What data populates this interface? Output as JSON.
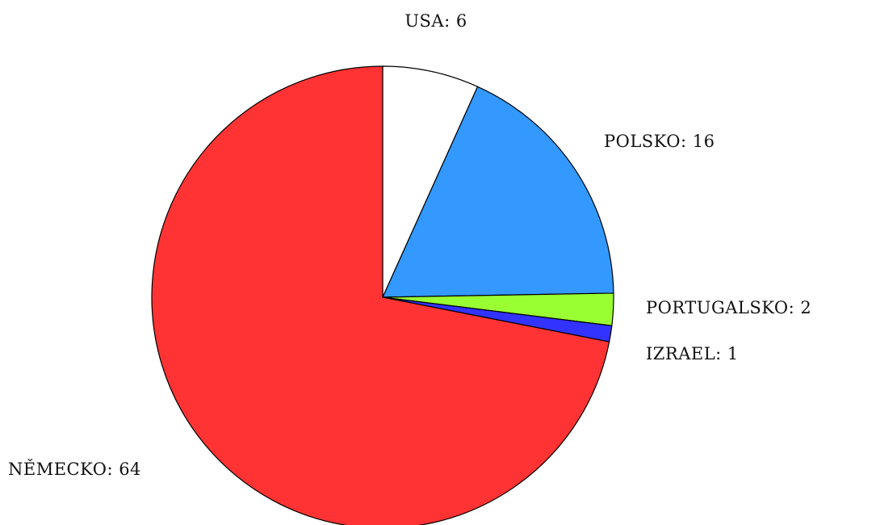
{
  "chart_data": {
    "type": "pie",
    "categories": [
      "USA",
      "POLSKO",
      "PORTUGALSKO",
      "IZRAEL",
      "NĚMECKO"
    ],
    "values": [
      6,
      16,
      2,
      1,
      64
    ],
    "labels": [
      "USA: 6",
      "POLSKO: 16",
      "PORTUGALSKO: 2",
      "IZRAEL: 1",
      "NĚMECKO: 64"
    ],
    "colors": [
      "#ffffff",
      "#3399ff",
      "#99ff33",
      "#3333ff",
      "#ff3333"
    ],
    "start_angle_deg": 0,
    "direction": "clockwise",
    "legend": "none"
  }
}
